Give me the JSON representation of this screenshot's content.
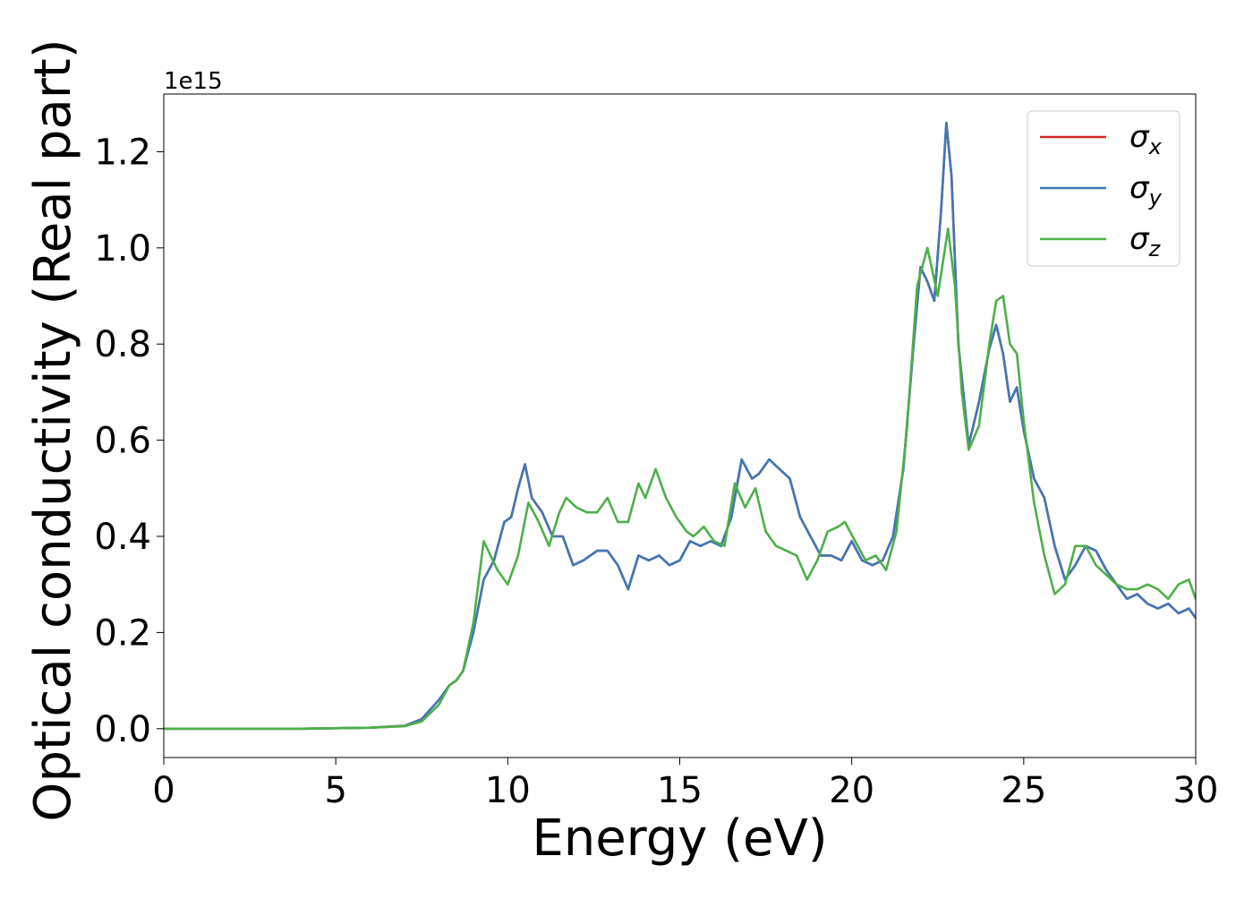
{
  "chart_data": {
    "type": "line",
    "xlabel": "Energy (eV)",
    "ylabel": "Optical conductivity (Real part)",
    "y_offset_label": "1e15",
    "y_scale_factor": 1000000000000000.0,
    "xlim": [
      0,
      30
    ],
    "ylim": [
      -0.06,
      1.32
    ],
    "x_ticks": [
      0,
      5,
      10,
      15,
      20,
      25,
      30
    ],
    "x_tick_labels": [
      "0",
      "5",
      "10",
      "15",
      "20",
      "25",
      "30"
    ],
    "y_ticks": [
      0.0,
      0.2,
      0.4,
      0.6,
      0.8,
      1.0,
      1.2
    ],
    "y_tick_labels": [
      "0.0",
      "0.2",
      "0.4",
      "0.6",
      "0.8",
      "1.0",
      "1.2"
    ],
    "grid": false,
    "legend_position": "top-right",
    "series": [
      {
        "name": "σx",
        "symbol": "σ",
        "subscript": "x",
        "color": "#d62728",
        "x": [
          0,
          2,
          4,
          6,
          7,
          7.5,
          8,
          8.3,
          8.5,
          8.7,
          9.0,
          9.3,
          9.6,
          9.9,
          10.1,
          10.3,
          10.5,
          10.7,
          11.0,
          11.3,
          11.6,
          11.9,
          12.2,
          12.6,
          12.9,
          13.2,
          13.5,
          13.8,
          14.1,
          14.4,
          14.7,
          15.0,
          15.3,
          15.6,
          15.9,
          16.2,
          16.5,
          16.8,
          17.1,
          17.3,
          17.6,
          17.9,
          18.2,
          18.5,
          18.8,
          19.1,
          19.4,
          19.7,
          20.0,
          20.3,
          20.6,
          20.9,
          21.2,
          21.5,
          21.8,
          22.0,
          22.2,
          22.4,
          22.6,
          22.75,
          22.9,
          23.1,
          23.4,
          23.7,
          24.0,
          24.2,
          24.4,
          24.6,
          24.8,
          25.0,
          25.3,
          25.6,
          25.9,
          26.2,
          26.5,
          26.8,
          27.1,
          27.4,
          27.7,
          28.0,
          28.3,
          28.6,
          28.9,
          29.2,
          29.5,
          29.8,
          30.0
        ],
        "y": [
          0.0,
          0.0,
          0.0,
          0.002,
          0.006,
          0.02,
          0.06,
          0.09,
          0.1,
          0.12,
          0.2,
          0.31,
          0.35,
          0.43,
          0.44,
          0.5,
          0.55,
          0.48,
          0.45,
          0.4,
          0.4,
          0.34,
          0.35,
          0.37,
          0.37,
          0.34,
          0.29,
          0.36,
          0.35,
          0.36,
          0.34,
          0.35,
          0.39,
          0.38,
          0.39,
          0.38,
          0.44,
          0.56,
          0.52,
          0.53,
          0.56,
          0.54,
          0.52,
          0.44,
          0.4,
          0.36,
          0.36,
          0.35,
          0.39,
          0.35,
          0.34,
          0.35,
          0.4,
          0.54,
          0.8,
          0.96,
          0.93,
          0.89,
          1.08,
          1.26,
          1.15,
          0.8,
          0.59,
          0.68,
          0.79,
          0.84,
          0.78,
          0.68,
          0.71,
          0.62,
          0.52,
          0.48,
          0.38,
          0.31,
          0.34,
          0.38,
          0.37,
          0.33,
          0.3,
          0.27,
          0.28,
          0.26,
          0.25,
          0.26,
          0.24,
          0.25,
          0.23
        ]
      },
      {
        "name": "σy",
        "symbol": "σ",
        "subscript": "y",
        "color": "#3f78b6",
        "x": [
          0,
          2,
          4,
          6,
          7,
          7.5,
          8,
          8.3,
          8.5,
          8.7,
          9.0,
          9.3,
          9.6,
          9.9,
          10.1,
          10.3,
          10.5,
          10.7,
          11.0,
          11.3,
          11.6,
          11.9,
          12.2,
          12.6,
          12.9,
          13.2,
          13.5,
          13.8,
          14.1,
          14.4,
          14.7,
          15.0,
          15.3,
          15.6,
          15.9,
          16.2,
          16.5,
          16.8,
          17.1,
          17.3,
          17.6,
          17.9,
          18.2,
          18.5,
          18.8,
          19.1,
          19.4,
          19.7,
          20.0,
          20.3,
          20.6,
          20.9,
          21.2,
          21.5,
          21.8,
          22.0,
          22.2,
          22.4,
          22.6,
          22.75,
          22.9,
          23.1,
          23.4,
          23.7,
          24.0,
          24.2,
          24.4,
          24.6,
          24.8,
          25.0,
          25.3,
          25.6,
          25.9,
          26.2,
          26.5,
          26.8,
          27.1,
          27.4,
          27.7,
          28.0,
          28.3,
          28.6,
          28.9,
          29.2,
          29.5,
          29.8,
          30.0
        ],
        "y": [
          0.0,
          0.0,
          0.0,
          0.002,
          0.006,
          0.02,
          0.06,
          0.09,
          0.1,
          0.12,
          0.2,
          0.31,
          0.35,
          0.43,
          0.44,
          0.5,
          0.55,
          0.48,
          0.45,
          0.4,
          0.4,
          0.34,
          0.35,
          0.37,
          0.37,
          0.34,
          0.29,
          0.36,
          0.35,
          0.36,
          0.34,
          0.35,
          0.39,
          0.38,
          0.39,
          0.38,
          0.44,
          0.56,
          0.52,
          0.53,
          0.56,
          0.54,
          0.52,
          0.44,
          0.4,
          0.36,
          0.36,
          0.35,
          0.39,
          0.35,
          0.34,
          0.35,
          0.4,
          0.54,
          0.8,
          0.96,
          0.93,
          0.89,
          1.08,
          1.26,
          1.15,
          0.8,
          0.59,
          0.68,
          0.79,
          0.84,
          0.78,
          0.68,
          0.71,
          0.62,
          0.52,
          0.48,
          0.38,
          0.31,
          0.34,
          0.38,
          0.37,
          0.33,
          0.3,
          0.27,
          0.28,
          0.26,
          0.25,
          0.26,
          0.24,
          0.25,
          0.23
        ]
      },
      {
        "name": "σz",
        "symbol": "σ",
        "subscript": "z",
        "color": "#4daf4a",
        "x": [
          0,
          2,
          4,
          6,
          7,
          7.5,
          8,
          8.3,
          8.5,
          8.7,
          9.0,
          9.3,
          9.5,
          9.7,
          10.0,
          10.3,
          10.6,
          10.9,
          11.2,
          11.5,
          11.7,
          12.0,
          12.3,
          12.6,
          12.9,
          13.2,
          13.5,
          13.8,
          14.0,
          14.3,
          14.6,
          14.9,
          15.2,
          15.4,
          15.7,
          16.0,
          16.3,
          16.6,
          16.9,
          17.2,
          17.5,
          17.8,
          18.1,
          18.4,
          18.7,
          19.0,
          19.3,
          19.6,
          19.8,
          20.1,
          20.4,
          20.7,
          21.0,
          21.3,
          21.6,
          21.9,
          22.2,
          22.5,
          22.8,
          23.0,
          23.2,
          23.4,
          23.7,
          24.0,
          24.2,
          24.4,
          24.6,
          24.8,
          25.0,
          25.3,
          25.6,
          25.9,
          26.2,
          26.5,
          26.8,
          27.1,
          27.4,
          27.7,
          28.0,
          28.3,
          28.6,
          28.9,
          29.2,
          29.5,
          29.8,
          30.0
        ],
        "y": [
          0.0,
          0.0,
          0.0,
          0.002,
          0.005,
          0.015,
          0.05,
          0.09,
          0.1,
          0.12,
          0.22,
          0.39,
          0.36,
          0.33,
          0.3,
          0.36,
          0.47,
          0.43,
          0.38,
          0.45,
          0.48,
          0.46,
          0.45,
          0.45,
          0.48,
          0.43,
          0.43,
          0.51,
          0.48,
          0.54,
          0.48,
          0.44,
          0.41,
          0.4,
          0.42,
          0.39,
          0.38,
          0.51,
          0.46,
          0.5,
          0.41,
          0.38,
          0.37,
          0.36,
          0.31,
          0.35,
          0.41,
          0.42,
          0.43,
          0.39,
          0.35,
          0.36,
          0.33,
          0.41,
          0.62,
          0.92,
          1.0,
          0.9,
          1.04,
          0.92,
          0.7,
          0.58,
          0.63,
          0.8,
          0.89,
          0.9,
          0.8,
          0.78,
          0.64,
          0.47,
          0.36,
          0.28,
          0.3,
          0.38,
          0.38,
          0.34,
          0.32,
          0.3,
          0.29,
          0.29,
          0.3,
          0.29,
          0.27,
          0.3,
          0.31,
          0.27
        ]
      }
    ]
  }
}
